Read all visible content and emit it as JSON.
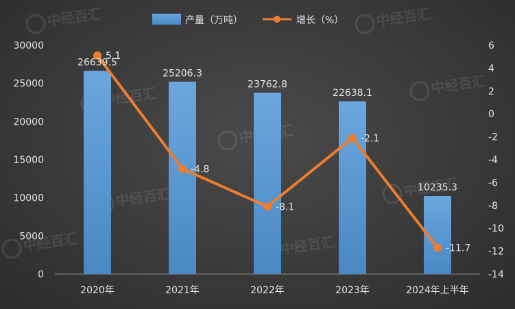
{
  "chart_data": {
    "type": "bar",
    "categories": [
      "2020年",
      "2021年",
      "2022年",
      "2023年",
      "2024年上半年"
    ],
    "series": [
      {
        "name": "产量（万吨）",
        "type": "bar",
        "axis": "left",
        "values": [
          26639.5,
          25206.3,
          23762.8,
          22638.1,
          10235.3
        ],
        "color": "#5b9bd5"
      },
      {
        "name": "增长（%）",
        "type": "line",
        "axis": "right",
        "values": [
          5.1,
          -4.8,
          -8.1,
          -2.1,
          -11.7
        ],
        "color": "#ed7d31"
      }
    ],
    "ylim_left": [
      0,
      30000
    ],
    "yticks_left": [
      "0",
      "5000",
      "10000",
      "15000",
      "20000",
      "25000",
      "30000"
    ],
    "ylim_right": [
      -14,
      6
    ],
    "yticks_right": [
      "-14",
      "-12",
      "-10",
      "-8",
      "-6",
      "-4",
      "-2",
      "0",
      "2",
      "4",
      "6"
    ],
    "bar_labels": [
      "26639.5",
      "25206.3",
      "23762.8",
      "22638.1",
      "10235.3"
    ],
    "line_labels": [
      "5.1",
      "-4.8",
      "-8.1",
      "-2.1",
      "-11.7"
    ],
    "legend_position": "top-center",
    "grid": false
  },
  "watermark": {
    "text": "中经百汇"
  },
  "colors": {
    "background": "#3a3a3a",
    "bar": "#5b9bd5",
    "line": "#ed7d31",
    "text": "#e6e6e6"
  }
}
